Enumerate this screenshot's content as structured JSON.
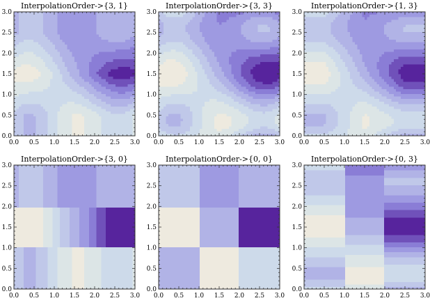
{
  "chart_data": [
    {
      "type": "heatmap",
      "title": "InterpolationOrder->{3, 1}",
      "xlim": [
        0,
        3
      ],
      "ylim": [
        0,
        3
      ],
      "xticks": [
        "0.0",
        "0.5",
        "1.0",
        "1.5",
        "2.0",
        "2.5",
        "3.0"
      ],
      "yticks": [
        "0.0",
        "0.5",
        "1.0",
        "1.5",
        "2.0",
        "2.5",
        "3.0"
      ],
      "interpolation_order": [
        3,
        1
      ],
      "grid": false
    },
    {
      "type": "heatmap",
      "title": "InterpolationOrder->{3, 3}",
      "xlim": [
        0,
        3
      ],
      "ylim": [
        0,
        3
      ],
      "xticks": [
        "0.0",
        "0.5",
        "1.0",
        "1.5",
        "2.0",
        "2.5",
        "3.0"
      ],
      "yticks": [
        "0.0",
        "0.5",
        "1.0",
        "1.5",
        "2.0",
        "2.5",
        "3.0"
      ],
      "interpolation_order": [
        3,
        3
      ],
      "grid": false
    },
    {
      "type": "heatmap",
      "title": "InterpolationOrder->{1, 3}",
      "xlim": [
        0,
        3
      ],
      "ylim": [
        0,
        3
      ],
      "xticks": [
        "0.0",
        "0.5",
        "1.0",
        "1.5",
        "2.0",
        "2.5",
        "3.0"
      ],
      "yticks": [
        "0.0",
        "0.5",
        "1.0",
        "1.5",
        "2.0",
        "2.5",
        "3.0"
      ],
      "interpolation_order": [
        1,
        3
      ],
      "grid": false
    },
    {
      "type": "heatmap",
      "title": "InterpolationOrder->{3, 0}",
      "xlim": [
        0,
        3
      ],
      "ylim": [
        0,
        3
      ],
      "xticks": [
        "0.0",
        "0.5",
        "1.0",
        "1.5",
        "2.0",
        "2.5",
        "3.0"
      ],
      "yticks": [
        "0.0",
        "0.5",
        "1.0",
        "1.5",
        "2.0",
        "2.5",
        "3.0"
      ],
      "interpolation_order": [
        3,
        0
      ],
      "grid": false
    },
    {
      "type": "heatmap",
      "title": "InterpolationOrder->{0, 0}",
      "xlim": [
        0,
        3
      ],
      "ylim": [
        0,
        3
      ],
      "xticks": [
        "0.0",
        "0.5",
        "1.0",
        "1.5",
        "2.0",
        "2.5",
        "3.0"
      ],
      "yticks": [
        "0.0",
        "0.5",
        "1.0",
        "1.5",
        "2.0",
        "2.5",
        "3.0"
      ],
      "interpolation_order": [
        0,
        0
      ],
      "grid": false
    },
    {
      "type": "heatmap",
      "title": "InterpolationOrder->{0, 3}",
      "xlim": [
        0,
        3
      ],
      "ylim": [
        0,
        3
      ],
      "xticks": [
        "0.0",
        "0.5",
        "1.0",
        "1.5",
        "2.0",
        "2.5",
        "3.0"
      ],
      "yticks": [
        "0.0",
        "0.5",
        "1.0",
        "1.5",
        "2.0",
        "2.5",
        "3.0"
      ],
      "interpolation_order": [
        0,
        3
      ],
      "grid": false
    }
  ],
  "grid_values": {
    "x": [
      0.5,
      1.5,
      2.5
    ],
    "y": [
      0.5,
      1.5,
      2.5
    ],
    "z": [
      [
        0.55,
        0.9,
        0.7
      ],
      [
        0.95,
        0.5,
        0.05
      ],
      [
        0.6,
        0.35,
        0.55
      ]
    ]
  },
  "colors": {
    "low": "#4a0e8f",
    "mid_low": "#8f86dc",
    "mid": "#b9bee9",
    "high_mid": "#d4e3ea",
    "high": "#f7eddb"
  }
}
